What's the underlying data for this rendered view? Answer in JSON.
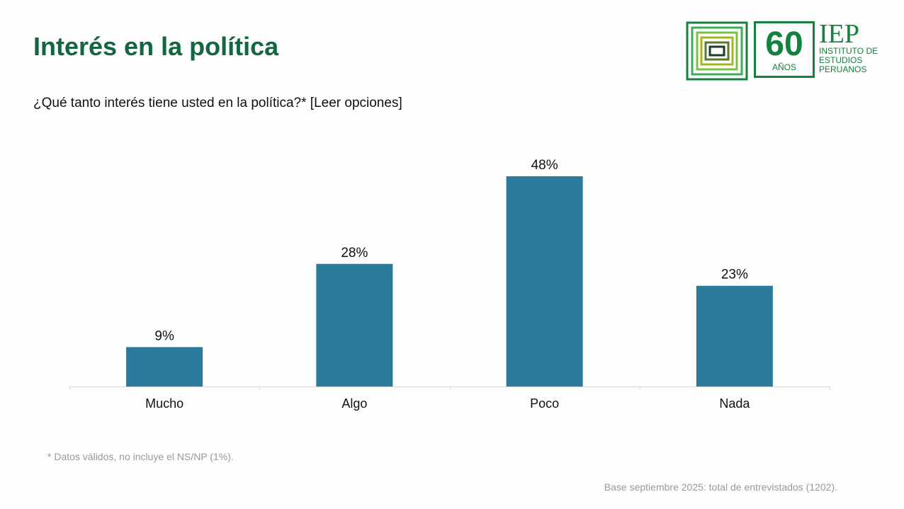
{
  "header": {
    "title": "Interés en la política",
    "subtitle": "¿Qué tanto interés tiene usted en la política?* [Leer opciones]"
  },
  "logo": {
    "number": "60",
    "years": "AÑOS",
    "acronym": "IEP",
    "name_lines": [
      "INSTITUTO DE",
      "ESTUDIOS",
      "PERUANOS"
    ]
  },
  "footer": {
    "note": "* Datos válidos, no incluye el NS/NP (1%).",
    "base": "Base septiembre 2025: total de entrevistados (1202)."
  },
  "colors": {
    "bar": "#2b7c9c",
    "title": "#13663f"
  },
  "chart_data": {
    "type": "bar",
    "title": "Interés en la política",
    "categories": [
      "Mucho",
      "Algo",
      "Poco",
      "Nada"
    ],
    "values": [
      9,
      28,
      48,
      23
    ],
    "value_labels": [
      "9%",
      "28%",
      "48%",
      "23%"
    ],
    "unit": "%",
    "ylim": [
      0,
      48
    ],
    "grid": false,
    "legend": "none"
  }
}
